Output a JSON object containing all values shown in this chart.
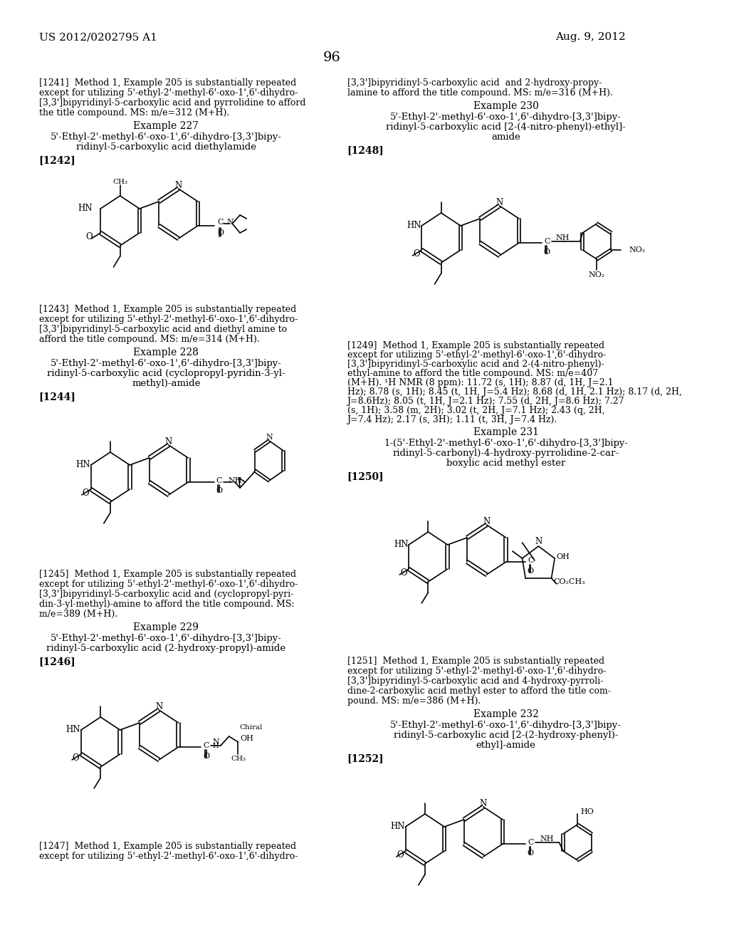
{
  "page_header_left": "US 2012/0202795 A1",
  "page_header_right": "Aug. 9, 2012",
  "page_number": "96",
  "background_color": "#ffffff",
  "text_color": "#000000",
  "font_size_header": 11,
  "font_size_body": 9.5,
  "font_size_example": 10,
  "font_size_label": 10
}
